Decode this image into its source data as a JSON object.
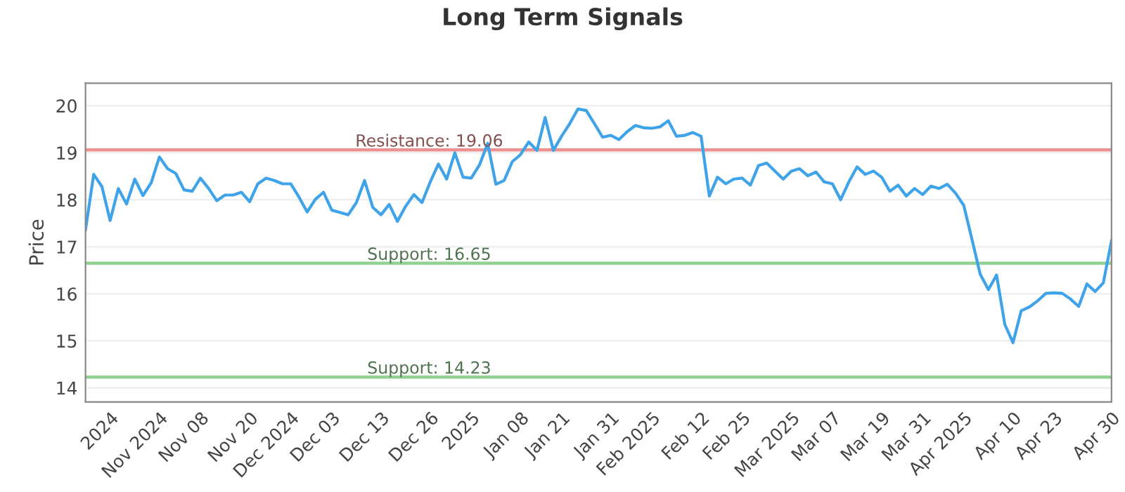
{
  "chart_data": {
    "type": "line",
    "title": "Long Term Signals",
    "ylabel": "Price",
    "categories": [
      null,
      null,
      null,
      "2024",
      null,
      null,
      null,
      null,
      null,
      "Nov 2024",
      null,
      null,
      null,
      null,
      "Nov 08",
      null,
      null,
      null,
      null,
      null,
      "Nov 20",
      null,
      null,
      null,
      null,
      "Dec 2024",
      null,
      null,
      null,
      null,
      "Dec 03",
      null,
      null,
      null,
      null,
      null,
      "Dec 13",
      null,
      null,
      null,
      null,
      null,
      "Dec 26",
      null,
      null,
      null,
      null,
      "2025",
      null,
      null,
      null,
      null,
      null,
      "Jan 08",
      null,
      null,
      null,
      null,
      "Jan 21",
      null,
      null,
      null,
      null,
      null,
      "Jan 31",
      null,
      null,
      null,
      null,
      "Feb 2025",
      null,
      null,
      null,
      null,
      null,
      "Feb 12",
      null,
      null,
      null,
      null,
      "Feb 25",
      null,
      null,
      null,
      null,
      null,
      "Mar 2025",
      null,
      null,
      null,
      null,
      "Mar 07",
      null,
      null,
      null,
      null,
      null,
      "Mar 19",
      null,
      null,
      null,
      null,
      "Mar 31",
      null,
      null,
      null,
      null,
      "Apr 2025",
      null,
      null,
      null,
      null,
      null,
      "Apr 10",
      null,
      null,
      null,
      null,
      "Apr 23",
      null,
      null,
      null,
      null,
      null,
      null,
      "Apr 30"
    ],
    "series": [
      {
        "color": "#3fa3ea",
        "values": [
          17.36,
          18.54,
          18.28,
          17.56,
          18.24,
          17.91,
          18.44,
          18.09,
          18.36,
          18.91,
          18.66,
          18.56,
          18.21,
          18.18,
          18.46,
          18.24,
          17.98,
          18.1,
          18.1,
          18.16,
          17.96,
          18.34,
          18.46,
          18.41,
          18.34,
          18.34,
          18.06,
          17.74,
          18.01,
          18.16,
          17.78,
          17.73,
          17.68,
          17.94,
          18.41,
          17.84,
          17.68,
          17.9,
          17.54,
          17.86,
          18.11,
          17.94,
          18.38,
          18.76,
          18.44,
          19.0,
          18.48,
          18.46,
          18.74,
          19.2,
          18.33,
          18.41,
          18.81,
          18.96,
          19.23,
          19.05,
          19.75,
          19.05,
          19.35,
          19.62,
          19.93,
          19.9,
          19.62,
          19.33,
          19.37,
          19.28,
          19.45,
          19.58,
          19.53,
          19.52,
          19.55,
          19.68,
          19.35,
          19.37,
          19.43,
          19.35,
          18.08,
          18.48,
          18.34,
          18.44,
          18.46,
          18.31,
          18.73,
          18.78,
          18.61,
          18.44,
          18.61,
          18.66,
          18.51,
          18.59,
          18.38,
          18.34,
          18.0,
          18.38,
          18.7,
          18.54,
          18.61,
          18.48,
          18.18,
          18.31,
          18.08,
          18.24,
          18.11,
          18.29,
          18.24,
          18.33,
          18.14,
          17.88,
          17.16,
          16.42,
          16.09,
          16.4,
          15.35,
          14.96,
          15.64,
          15.72,
          15.85,
          16.01,
          16.02,
          16.01,
          15.89,
          15.73,
          16.21,
          16.05,
          16.23,
          17.13
        ]
      }
    ],
    "ylim": [
      13.7,
      20.48
    ],
    "yticks": [
      14,
      15,
      16,
      17,
      18,
      19,
      20
    ],
    "grid": "y",
    "ref_lines": [
      {
        "axis": "y",
        "value": 19.06,
        "label": "Resistance: 19.06",
        "color": "#ee9090"
      },
      {
        "axis": "y",
        "value": 16.65,
        "label": "Support: 16.65",
        "color": "#90d090"
      },
      {
        "axis": "y",
        "value": 14.23,
        "label": "Support: 14.23",
        "color": "#90d090"
      }
    ]
  }
}
